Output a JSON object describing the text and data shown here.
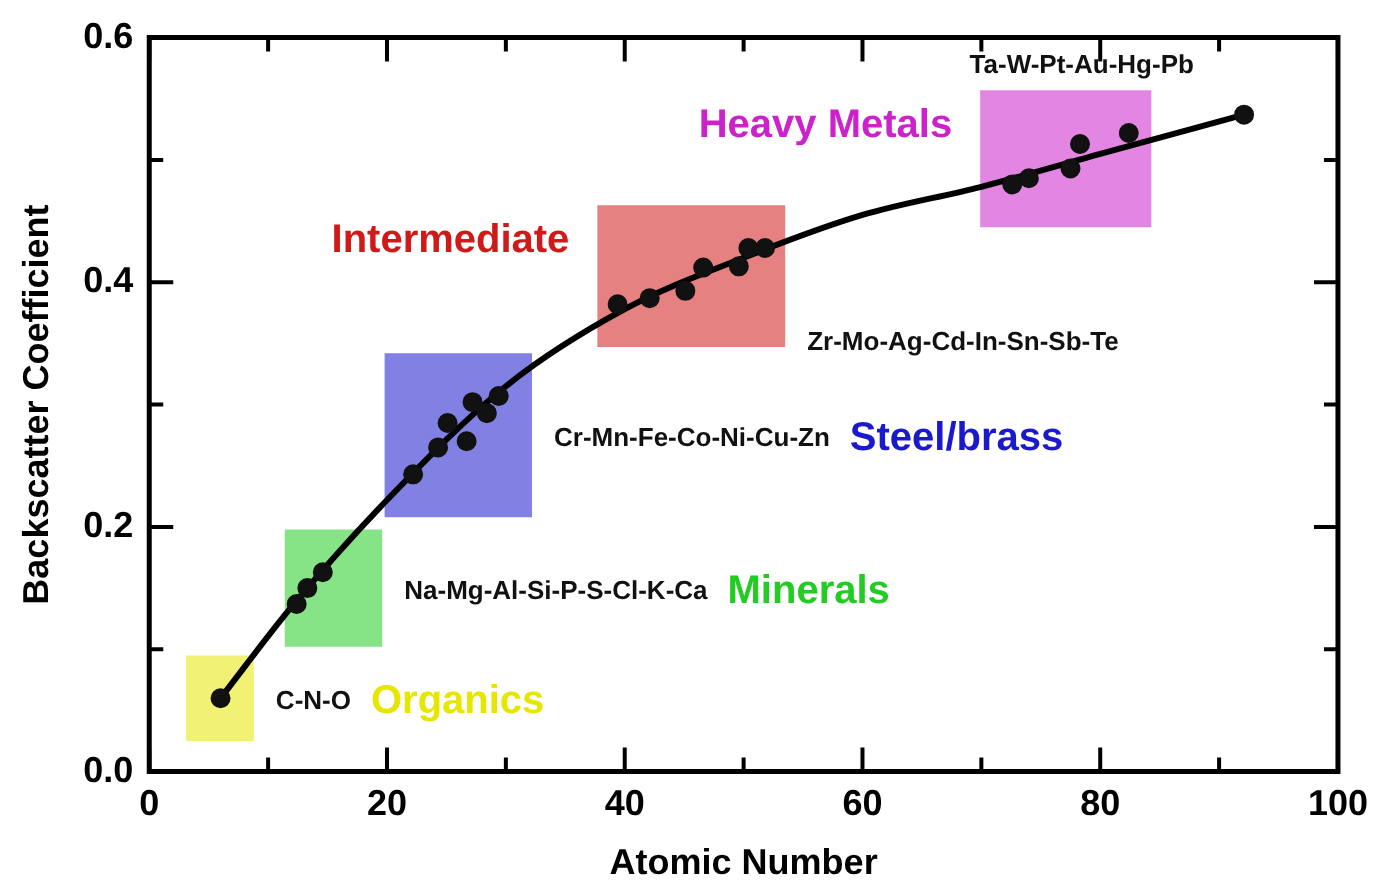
{
  "chart_data": {
    "type": "scatter",
    "xlabel": "Atomic Number",
    "ylabel": "Backscatter Coefficient",
    "xlim": [
      0,
      100
    ],
    "ylim": [
      0,
      0.6
    ],
    "xticks": [
      0,
      {
        "value": 10,
        "label": null
      },
      20,
      {
        "value": 30,
        "label": null
      },
      40,
      {
        "value": 50,
        "label": null
      },
      60,
      {
        "value": 70,
        "label": null
      },
      80,
      {
        "value": 90,
        "label": null
      },
      100
    ],
    "yticks": [
      "0.0",
      {
        "value": 0.1,
        "label": null
      },
      0.2,
      {
        "value": 0.3,
        "label": null
      },
      0.4,
      {
        "value": 0.5,
        "label": null
      },
      0.6
    ],
    "grid": false,
    "legend": false,
    "marker": "circle",
    "series": [
      {
        "color": "#111111",
        "x": [
          6.0,
          12.4,
          13.3,
          14.6,
          22.2,
          24.3,
          25.1,
          26.7,
          27.2,
          28.4,
          29.4,
          39.4,
          42.1,
          45.1,
          46.6,
          49.6,
          50.4,
          51.8,
          72.6,
          74.0,
          77.5,
          78.3,
          82.4,
          92.1
        ],
        "values": [
          0.06,
          0.137,
          0.15,
          0.163,
          0.243,
          0.265,
          0.285,
          0.27,
          0.302,
          0.293,
          0.307,
          0.382,
          0.387,
          0.393,
          0.412,
          0.413,
          0.428,
          0.428,
          0.48,
          0.485,
          0.493,
          0.513,
          0.522,
          0.537
        ]
      },
      {
        "type": "line",
        "marker": "none",
        "color": "#000000",
        "x": [
          6,
          12,
          20,
          30,
          40,
          50,
          60,
          70,
          80,
          92.1
        ],
        "values": [
          0.06,
          0.135,
          0.222,
          0.315,
          0.378,
          0.42,
          0.455,
          0.478,
          0.505,
          0.537
        ]
      }
    ],
    "bands": [
      {
        "axis": "x",
        "from": 3.1,
        "to": 8.8,
        "label": "Organics",
        "color": "#e6e600"
      },
      {
        "axis": "x",
        "from": 11.4,
        "to": 19.6,
        "label": "Minerals",
        "color": "#22cc22"
      },
      {
        "axis": "x",
        "from": 19.8,
        "to": 32.2,
        "label": "Steel/brass",
        "color": "#1a1acc"
      },
      {
        "axis": "x",
        "from": 37.7,
        "to": 53.5,
        "label": "Intermediate",
        "color": "#d01a1a"
      },
      {
        "axis": "x",
        "from": 69.9,
        "to": 84.3,
        "label": "Heavy Metals",
        "color": "#cc22cc"
      }
    ],
    "annotations": [
      "C-N-O",
      "Na-Mg-Al-Si-P-S-Cl-K-Ca",
      "Cr-Mn-Fe-Co-Ni-Cu-Zn",
      "Zr-Mo-Ag-Cd-In-Sn-Sb-Te",
      "Ta-W-Pt-Au-Hg-Pb"
    ]
  }
}
